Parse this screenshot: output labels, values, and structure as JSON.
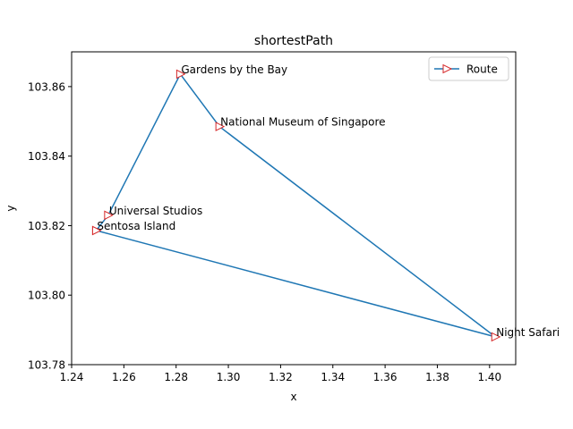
{
  "chart_data": {
    "type": "line",
    "title": "shortestPath",
    "xlabel": "x",
    "ylabel": "y",
    "xlim": [
      1.24,
      1.41
    ],
    "ylim": [
      103.78,
      103.87
    ],
    "xticks": [
      "1.24",
      "1.26",
      "1.28",
      "1.30",
      "1.32",
      "1.34",
      "1.36",
      "1.38",
      "1.40"
    ],
    "yticks": [
      "103.78",
      "103.80",
      "103.82",
      "103.84",
      "103.86"
    ],
    "grid": false,
    "legend": {
      "position": "upper-right",
      "entries": [
        "Route"
      ]
    },
    "series": [
      {
        "name": "Route",
        "color": "#1f77b4",
        "marker": "triangle-right",
        "marker_edge_color": "#d62728",
        "points": [
          {
            "x": 1.2494,
            "y": 103.8186,
            "label": "Sentosa Island"
          },
          {
            "x": 1.254,
            "y": 103.823,
            "label": "Universal Studios"
          },
          {
            "x": 1.2816,
            "y": 103.8636,
            "label": "Gardens by the Bay"
          },
          {
            "x": 1.2966,
            "y": 103.8485,
            "label": "National Museum of Singapore"
          },
          {
            "x": 1.4022,
            "y": 103.788,
            "label": "Night Safari"
          },
          {
            "x": 1.2494,
            "y": 103.8186
          }
        ]
      }
    ]
  }
}
